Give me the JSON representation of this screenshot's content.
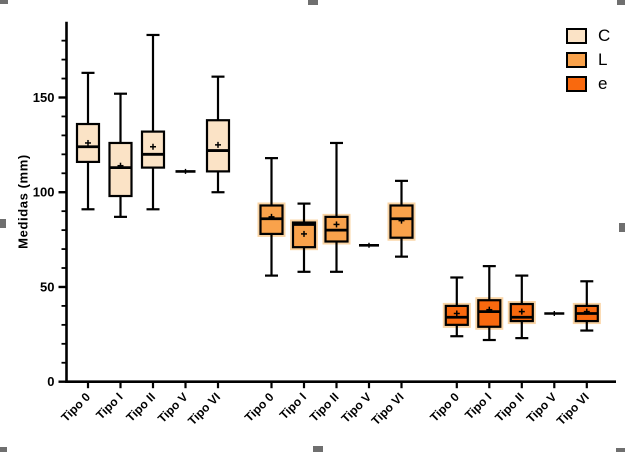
{
  "chart_data": {
    "type": "boxplot",
    "title": "",
    "ylabel": "Medidas (mm)",
    "xlabel": "",
    "ylim": [
      0,
      190
    ],
    "yticks_major": [
      0,
      50,
      100,
      150
    ],
    "ytick_labels": [
      "0",
      "50",
      "100",
      "150"
    ],
    "minor_tick_step": 10,
    "grid": false,
    "legend_position": "top-right",
    "categories": [
      "Tipo 0",
      "Tipo I",
      "Tipo II",
      "Tipo V",
      "Tipo VI"
    ],
    "legend": [
      {
        "label": "C",
        "color": "#FBE3C6"
      },
      {
        "label": "L",
        "color": "#F9A24B"
      },
      {
        "label": "e",
        "color": "#F9690E"
      }
    ],
    "series": [
      {
        "name": "C",
        "color": "#FBE3C6",
        "halo": false,
        "boxes": [
          {
            "category": "Tipo 0",
            "low": 91,
            "q1": 116,
            "median": 124,
            "mean": 126,
            "q3": 136,
            "high": 163
          },
          {
            "category": "Tipo I",
            "low": 87,
            "q1": 98,
            "median": 113,
            "mean": 114,
            "q3": 126,
            "high": 152
          },
          {
            "category": "Tipo II",
            "low": 91,
            "q1": 113,
            "median": 120,
            "mean": 124,
            "q3": 132,
            "high": 183
          },
          {
            "category": "Tipo V",
            "value": 111
          },
          {
            "category": "Tipo VI",
            "low": 100,
            "q1": 111,
            "median": 122,
            "mean": 125,
            "q3": 138,
            "high": 161
          }
        ]
      },
      {
        "name": "L",
        "color": "#F9A24B",
        "halo": true,
        "boxes": [
          {
            "category": "Tipo 0",
            "low": 56,
            "q1": 78,
            "median": 86,
            "mean": 87,
            "q3": 93,
            "high": 118
          },
          {
            "category": "Tipo I",
            "low": 58,
            "q1": 71,
            "median": 83,
            "mean": 78,
            "q3": 84,
            "high": 94
          },
          {
            "category": "Tipo II",
            "low": 58,
            "q1": 74,
            "median": 80,
            "mean": 83,
            "q3": 87,
            "high": 126
          },
          {
            "category": "Tipo V",
            "value": 72
          },
          {
            "category": "Tipo VI",
            "low": 66,
            "q1": 76,
            "median": 86,
            "mean": 85,
            "q3": 93,
            "high": 106
          }
        ]
      },
      {
        "name": "e",
        "color": "#F9690E",
        "halo": true,
        "boxes": [
          {
            "category": "Tipo 0",
            "low": 24,
            "q1": 30,
            "median": 34,
            "mean": 36,
            "q3": 40,
            "high": 55
          },
          {
            "category": "Tipo I",
            "low": 22,
            "q1": 29,
            "median": 37,
            "mean": 38,
            "q3": 43,
            "high": 61
          },
          {
            "category": "Tipo II",
            "low": 23,
            "q1": 32,
            "median": 34,
            "mean": 37,
            "q3": 41,
            "high": 56
          },
          {
            "category": "Tipo V",
            "value": 36
          },
          {
            "category": "Tipo VI",
            "low": 27,
            "q1": 32,
            "median": 36,
            "mean": 37,
            "q3": 40,
            "high": 53
          }
        ]
      }
    ],
    "style": {
      "halo_color": "#FAD4A4",
      "axis_color": "#000000",
      "handle_color": "#6f6f6f"
    }
  }
}
